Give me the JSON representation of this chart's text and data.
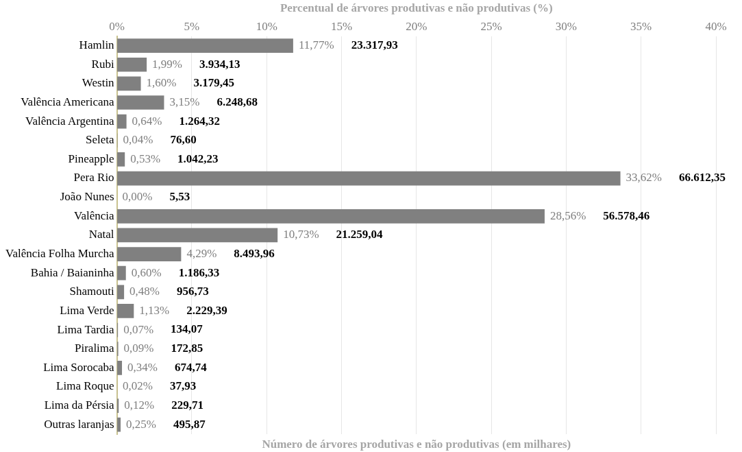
{
  "chart_data": {
    "type": "bar",
    "orientation": "horizontal",
    "xlabel": "Percentual de árvores produtivas e não produtivas (%)",
    "categories": [
      "Hamlin",
      "Rubi",
      "Westin",
      "Valência Americana",
      "Valência Argentina",
      "Seleta",
      "Pineapple",
      "Pera Rio",
      "João Nunes",
      "Valência",
      "Natal",
      "Valência Folha Murcha",
      "Bahia / Baianinha",
      "Shamouti",
      "Lima Verde",
      "Lima Tardia",
      "Piralima",
      "Lima Sorocaba",
      "Lima Roque",
      "Lima da Pérsia",
      "Outras laranjas"
    ],
    "series": [
      {
        "color": "#808080",
        "values": [
          11.77,
          1.99,
          1.6,
          3.15,
          0.64,
          0.04,
          0.53,
          33.62,
          0.0,
          28.56,
          10.73,
          4.29,
          0.6,
          0.48,
          1.13,
          0.07,
          0.09,
          0.34,
          0.02,
          0.12,
          0.25
        ],
        "value_labels": [
          "11,77%",
          "1,99%",
          "1,60%",
          "3,15%",
          "0,64%",
          "0,04%",
          "0,53%",
          "33,62%",
          "0,00%",
          "28,56%",
          "10,73%",
          "4,29%",
          "0,60%",
          "0,48%",
          "1,13%",
          "0,07%",
          "0,09%",
          "0,34%",
          "0,02%",
          "0,12%",
          "0,25%"
        ]
      }
    ],
    "xlim": [
      0,
      40
    ],
    "xticks": [
      {
        "value": 0,
        "label": "0%"
      },
      {
        "value": 5,
        "label": "5%"
      },
      {
        "value": 10,
        "label": "10%"
      },
      {
        "value": 15,
        "label": "15%"
      },
      {
        "value": 20,
        "label": "20%"
      },
      {
        "value": 25,
        "label": "25%"
      },
      {
        "value": 30,
        "label": "30%"
      },
      {
        "value": 35,
        "label": "35%"
      },
      {
        "value": 40,
        "label": "40%"
      }
    ],
    "grid": "x",
    "annotations": [
      "23.317,93",
      "3.934,13",
      "3.179,45",
      "6.248,68",
      "1.264,32",
      "76,60",
      "1.042,23",
      "66.612,35",
      "5,53",
      "56.578,46",
      "21.259,04",
      "8.493,96",
      "1.186,33",
      "956,73",
      "2.229,39",
      "134,07",
      "172,85",
      "674,74",
      "37,93",
      "229,71",
      "495,87",
      "Número de árvores produtivas e não produtivas (em milhares)"
    ]
  }
}
